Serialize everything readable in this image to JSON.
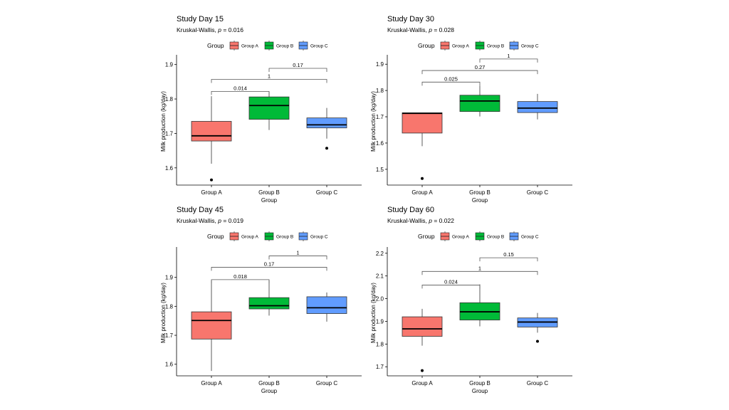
{
  "chart_data": [
    {
      "type": "box",
      "title": "Study Day 15",
      "subtitle_prefix": "Kruskal-Wallis, ",
      "subtitle_p": "p",
      "subtitle_value": " = 0.016",
      "legend_title": "Group",
      "legend": [
        "Group A",
        "Group B",
        "Group C"
      ],
      "colors": [
        "#F8766D",
        "#00BA38",
        "#619CFF"
      ],
      "xlabel": "Group",
      "ylabel": "Milk production (kg/day)",
      "categories": [
        "Group A",
        "Group B",
        "Group C"
      ],
      "ylim": [
        1.55,
        1.92
      ],
      "yticks": [
        "1.6",
        "1.7",
        "1.8",
        "1.9"
      ],
      "boxes": [
        {
          "min": 1.612,
          "q1": 1.678,
          "median": 1.693,
          "q3": 1.735,
          "max": 1.808,
          "outliers": [
            1.565
          ]
        },
        {
          "min": 1.71,
          "q1": 1.741,
          "median": 1.781,
          "q3": 1.806,
          "max": 1.82,
          "outliers": []
        },
        {
          "min": 1.685,
          "q1": 1.716,
          "median": 1.725,
          "q3": 1.745,
          "max": 1.774,
          "outliers": [
            1.657
          ]
        }
      ],
      "comparisons": [
        {
          "from": 0,
          "to": 1,
          "label": "0.014",
          "y": 1.822
        },
        {
          "from": 0,
          "to": 2,
          "label": "1",
          "y": 1.857
        },
        {
          "from": 1,
          "to": 2,
          "label": "0.17",
          "y": 1.889
        }
      ]
    },
    {
      "type": "box",
      "title": "Study Day 30",
      "subtitle_prefix": "Kruskal-Wallis, ",
      "subtitle_p": "p",
      "subtitle_value": " = 0.028",
      "legend_title": "Group",
      "legend": [
        "Group A",
        "Group B",
        "Group C"
      ],
      "colors": [
        "#F8766D",
        "#00BA38",
        "#619CFF"
      ],
      "xlabel": "Group",
      "ylabel": "Milk production (kg/day)",
      "categories": [
        "Group A",
        "Group B",
        "Group C"
      ],
      "ylim": [
        1.44,
        1.925
      ],
      "yticks": [
        "1.5",
        "1.6",
        "1.7",
        "1.8",
        "1.9"
      ],
      "boxes": [
        {
          "min": 1.588,
          "q1": 1.638,
          "median": 1.713,
          "q3": 1.715,
          "max": 1.715,
          "outliers": [
            1.465
          ]
        },
        {
          "min": 1.701,
          "q1": 1.72,
          "median": 1.76,
          "q3": 1.782,
          "max": 1.818,
          "outliers": []
        },
        {
          "min": 1.69,
          "q1": 1.716,
          "median": 1.733,
          "q3": 1.758,
          "max": 1.787,
          "outliers": []
        }
      ],
      "comparisons": [
        {
          "from": 0,
          "to": 1,
          "label": "0.025",
          "y": 1.832
        },
        {
          "from": 0,
          "to": 2,
          "label": "0.27",
          "y": 1.876
        },
        {
          "from": 1,
          "to": 2,
          "label": "1",
          "y": 1.92
        }
      ]
    },
    {
      "type": "box",
      "title": "Study Day 45",
      "subtitle_prefix": "Kruskal-Wallis, ",
      "subtitle_p": "p",
      "subtitle_value": " = 0.019",
      "legend_title": "Group",
      "legend": [
        "Group A",
        "Group B",
        "Group C"
      ],
      "colors": [
        "#F8766D",
        "#00BA38",
        "#619CFF"
      ],
      "xlabel": "Group",
      "ylabel": "Milk production (kg/day)",
      "categories": [
        "Group A",
        "Group B",
        "Group C"
      ],
      "ylim": [
        1.56,
        1.995
      ],
      "yticks": [
        "1.6",
        "1.7",
        "1.8",
        "1.9"
      ],
      "boxes": [
        {
          "min": 1.577,
          "q1": 1.687,
          "median": 1.751,
          "q3": 1.781,
          "max": 1.89,
          "outliers": []
        },
        {
          "min": 1.768,
          "q1": 1.791,
          "median": 1.802,
          "q3": 1.83,
          "max": 1.89,
          "outliers": []
        },
        {
          "min": 1.747,
          "q1": 1.775,
          "median": 1.795,
          "q3": 1.833,
          "max": 1.848,
          "outliers": []
        }
      ],
      "comparisons": [
        {
          "from": 0,
          "to": 1,
          "label": "0.018",
          "y": 1.892
        },
        {
          "from": 0,
          "to": 2,
          "label": "0.17",
          "y": 1.935
        },
        {
          "from": 1,
          "to": 2,
          "label": "1",
          "y": 1.974
        }
      ]
    },
    {
      "type": "box",
      "title": "Study Day 60",
      "subtitle_prefix": "Kruskal-Wallis, ",
      "subtitle_p": "p",
      "subtitle_value": " = 0.022",
      "legend_title": "Group",
      "legend": [
        "Group A",
        "Group B",
        "Group C"
      ],
      "colors": [
        "#F8766D",
        "#00BA38",
        "#619CFF"
      ],
      "xlabel": "Group",
      "ylabel": "Milk production (kg/day)",
      "categories": [
        "Group A",
        "Group B",
        "Group C"
      ],
      "ylim": [
        1.66,
        2.215
      ],
      "yticks": [
        "1.7",
        "1.8",
        "1.9",
        "2.0",
        "2.1",
        "2.2"
      ],
      "boxes": [
        {
          "min": 1.793,
          "q1": 1.834,
          "median": 1.867,
          "q3": 1.92,
          "max": 1.955,
          "outliers": [
            1.683
          ]
        },
        {
          "min": 1.878,
          "q1": 1.906,
          "median": 1.942,
          "q3": 1.982,
          "max": 2.063,
          "outliers": []
        },
        {
          "min": 1.85,
          "q1": 1.875,
          "median": 1.897,
          "q3": 1.915,
          "max": 1.937,
          "outliers": [
            1.812
          ]
        }
      ],
      "comparisons": [
        {
          "from": 0,
          "to": 1,
          "label": "0.024",
          "y": 2.06
        },
        {
          "from": 0,
          "to": 2,
          "label": "1",
          "y": 2.12
        },
        {
          "from": 1,
          "to": 2,
          "label": "0.15",
          "y": 2.18
        }
      ]
    }
  ]
}
